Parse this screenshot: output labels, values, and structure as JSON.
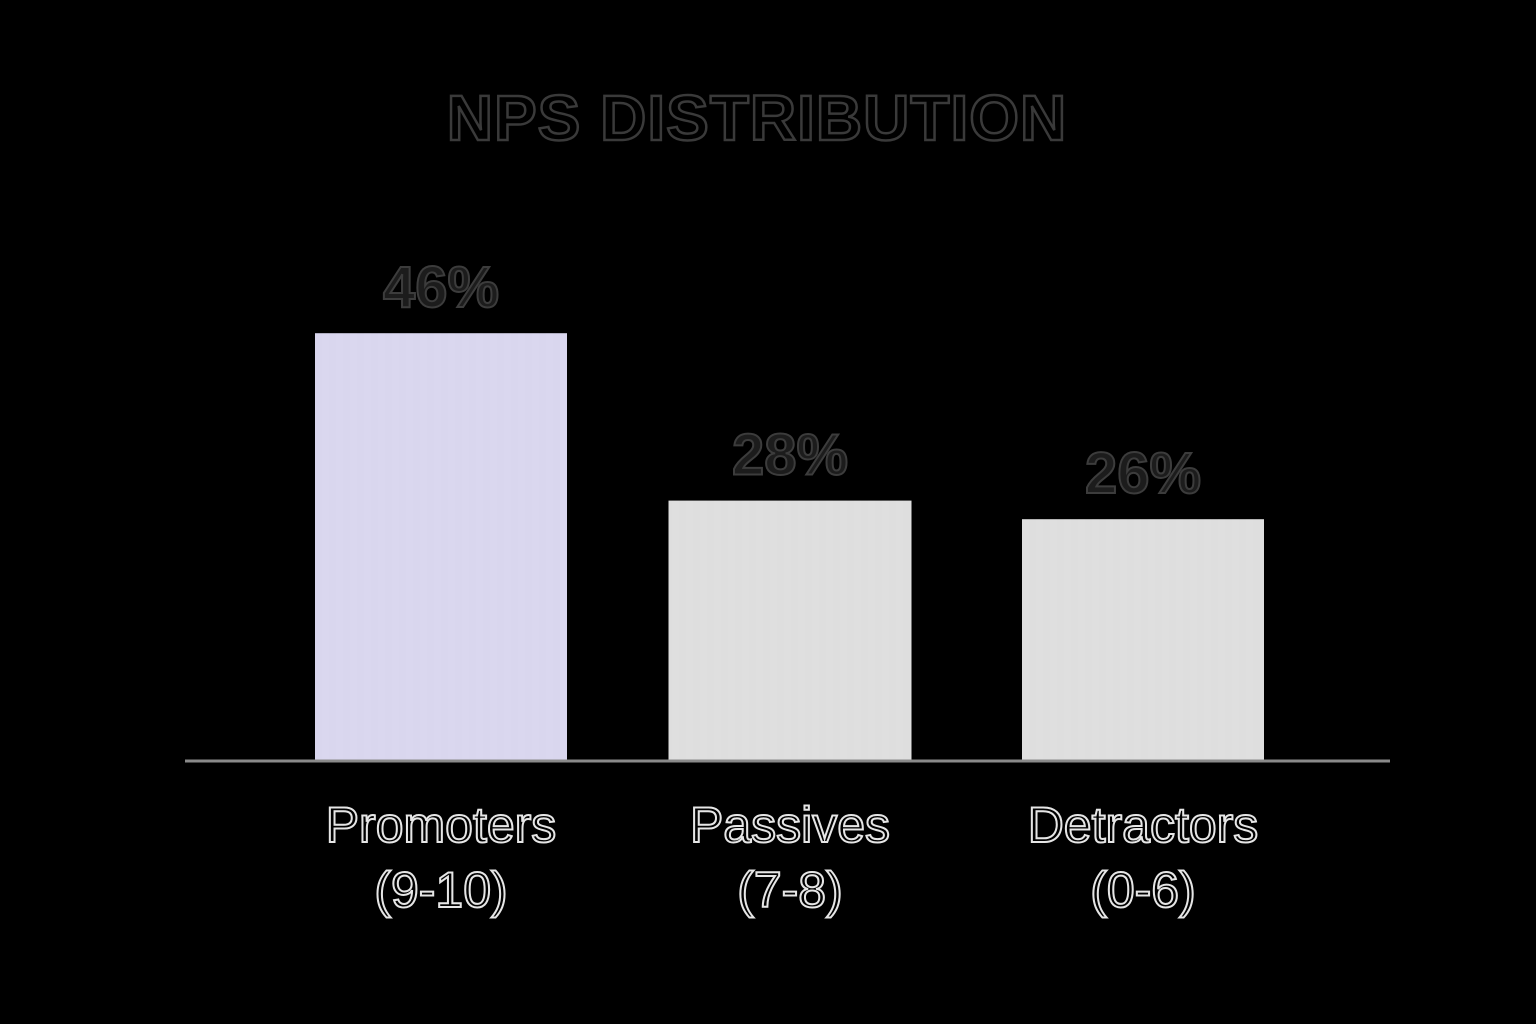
{
  "chart_data": {
    "type": "bar",
    "title": "NPS DISTRIBUTION",
    "categories": [
      {
        "line1": "Promoters",
        "line2": "(9-10)"
      },
      {
        "line1": "Passives",
        "line2": "(7-8)"
      },
      {
        "line1": "Detractors",
        "line2": "(0-6)"
      }
    ],
    "values": [
      46,
      28,
      26
    ],
    "value_labels": [
      "46%",
      "28%",
      "26%"
    ],
    "ylim": [
      0,
      50
    ],
    "grid": false,
    "colors": [
      "#d9d6ee",
      "#dedede",
      "#dedede"
    ],
    "axis_color": "#8a8a8a",
    "background": "#000000"
  }
}
